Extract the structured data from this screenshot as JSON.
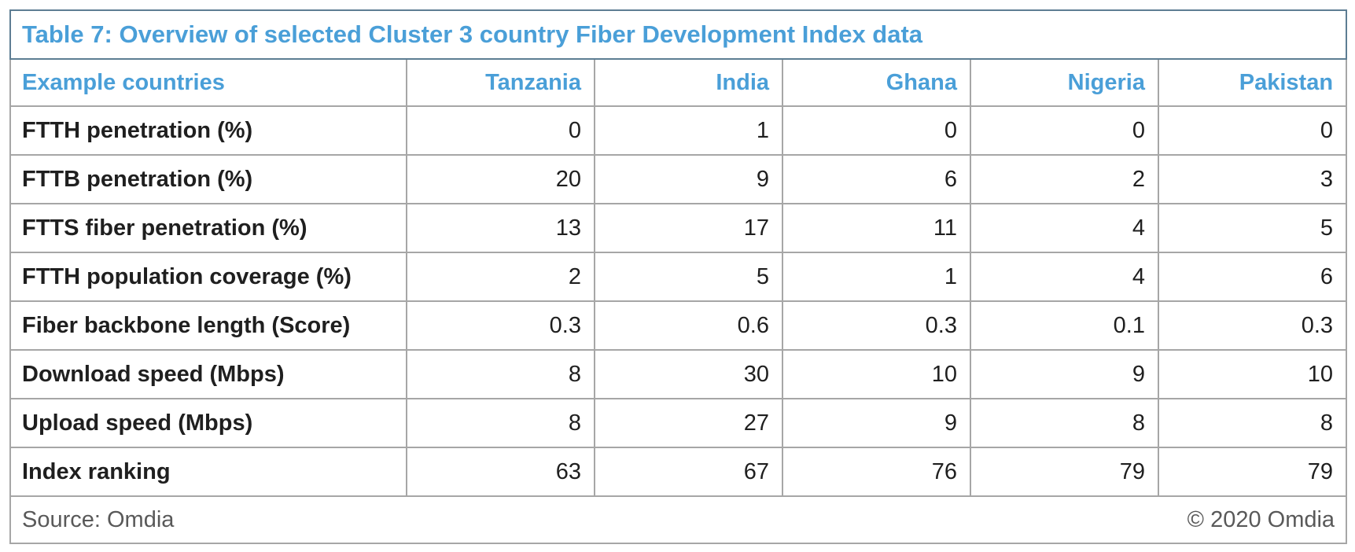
{
  "table": {
    "title": "Table 7: Overview of selected Cluster 3 country Fiber Development Index data",
    "header": {
      "label_column": "Example countries",
      "countries": [
        "Tanzania",
        "India",
        "Ghana",
        "Nigeria",
        "Pakistan"
      ]
    },
    "rows": [
      {
        "label": "FTTH penetration (%)",
        "values": [
          "0",
          "1",
          "0",
          "0",
          "0"
        ]
      },
      {
        "label": "FTTB penetration (%)",
        "values": [
          "20",
          "9",
          "6",
          "2",
          "3"
        ]
      },
      {
        "label": "FTTS fiber penetration (%)",
        "values": [
          "13",
          "17",
          "11",
          "4",
          "5"
        ]
      },
      {
        "label": "FTTH population coverage (%)",
        "values": [
          "2",
          "5",
          "1",
          "4",
          "6"
        ]
      },
      {
        "label": "Fiber backbone length (Score)",
        "values": [
          "0.3",
          "0.6",
          "0.3",
          "0.1",
          "0.3"
        ]
      },
      {
        "label": "Download speed (Mbps)",
        "values": [
          "8",
          "30",
          "10",
          "9",
          "10"
        ]
      },
      {
        "label": "Upload speed (Mbps)",
        "values": [
          "8",
          "27",
          "9",
          "8",
          "8"
        ]
      },
      {
        "label": "Index ranking",
        "values": [
          "63",
          "67",
          "76",
          "79",
          "79"
        ]
      }
    ],
    "footer": {
      "source": "Source: Omdia",
      "copyright": "© 2020 Omdia"
    }
  },
  "colors": {
    "accent_blue": "#4a9fd8",
    "title_border": "#5d7d93",
    "grid_line": "#a6a6a6",
    "body_text": "#1f1f1f",
    "footer_text": "#595959"
  },
  "chart_data": {
    "type": "table",
    "title": "Table 7: Overview of selected Cluster 3 country Fiber Development Index data",
    "columns": [
      "Example countries",
      "Tanzania",
      "India",
      "Ghana",
      "Nigeria",
      "Pakistan"
    ],
    "rows": [
      [
        "FTTH penetration (%)",
        0,
        1,
        0,
        0,
        0
      ],
      [
        "FTTB penetration (%)",
        20,
        9,
        6,
        2,
        3
      ],
      [
        "FTTS fiber penetration (%)",
        13,
        17,
        11,
        4,
        5
      ],
      [
        "FTTH population coverage (%)",
        2,
        5,
        1,
        4,
        6
      ],
      [
        "Fiber backbone length (Score)",
        0.3,
        0.6,
        0.3,
        0.1,
        0.3
      ],
      [
        "Download speed (Mbps)",
        8,
        30,
        10,
        9,
        10
      ],
      [
        "Upload speed (Mbps)",
        8,
        27,
        9,
        8,
        8
      ],
      [
        "Index ranking",
        63,
        67,
        76,
        79,
        79
      ]
    ],
    "source": "Source: Omdia",
    "copyright": "© 2020 Omdia"
  }
}
